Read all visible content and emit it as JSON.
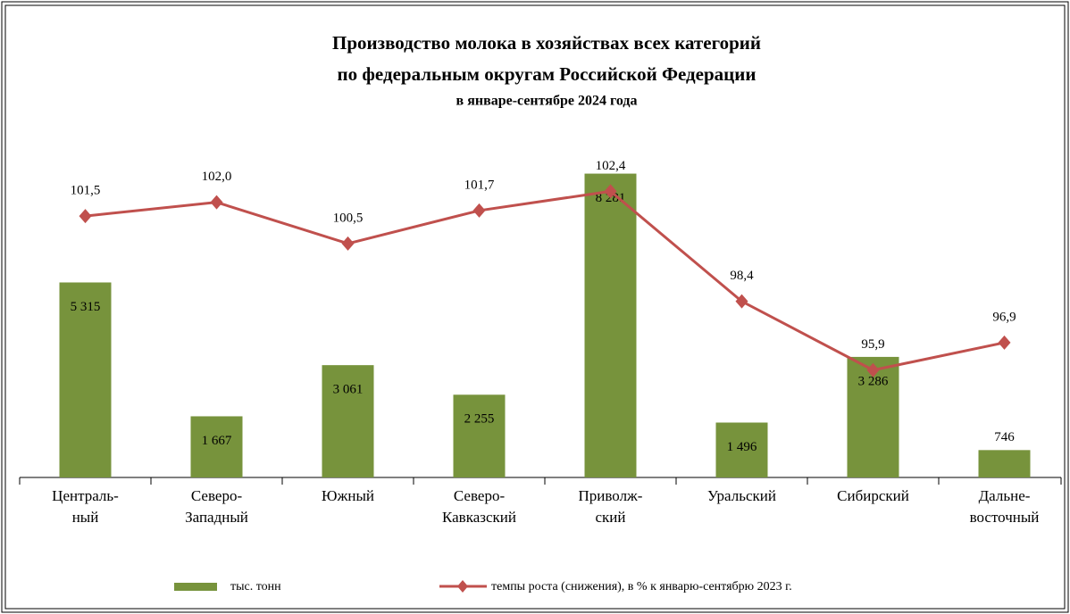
{
  "chart_data": {
    "type": "bar+line",
    "title": [
      "Производство  молока в хозяйствах  всех категорий",
      "по федеральным  округам  Российской  Федерации"
    ],
    "subtitle": "в январе-сентябре 2024 года",
    "categories": [
      [
        "Централь-",
        "ный"
      ],
      [
        "Северо-",
        "Западный"
      ],
      [
        "Южный"
      ],
      [
        "Северо-",
        "Кавказский"
      ],
      [
        "Приволж-",
        "ский"
      ],
      [
        "Уральский"
      ],
      [
        "Сибирский"
      ],
      [
        "Дальне-",
        "восточный"
      ]
    ],
    "series": [
      {
        "name": "тыс. тонн",
        "type": "bar",
        "color": "#77933c",
        "axis": "y",
        "values": [
          5315,
          1667,
          3061,
          2255,
          8281,
          1496,
          3286,
          746
        ],
        "value_labels": [
          "5 315",
          "1 667",
          "3 061",
          "2 255",
          "8 281",
          "1 496",
          "3 286",
          "746"
        ]
      },
      {
        "name": "темпы роста (снижения), в % к январю-сентябрю 2023 г.",
        "type": "line",
        "color": "#c0504d",
        "axis": "y2",
        "values": [
          101.5,
          102.0,
          100.5,
          101.7,
          102.4,
          98.4,
          95.9,
          96.9
        ],
        "value_labels": [
          "101,5",
          "102,0",
          "100,5",
          "101,7",
          "102,4",
          "98,4",
          "95,9",
          "96,9"
        ]
      }
    ],
    "ylim": [
      0,
      9000
    ],
    "y2lim": [
      92,
      104
    ]
  }
}
